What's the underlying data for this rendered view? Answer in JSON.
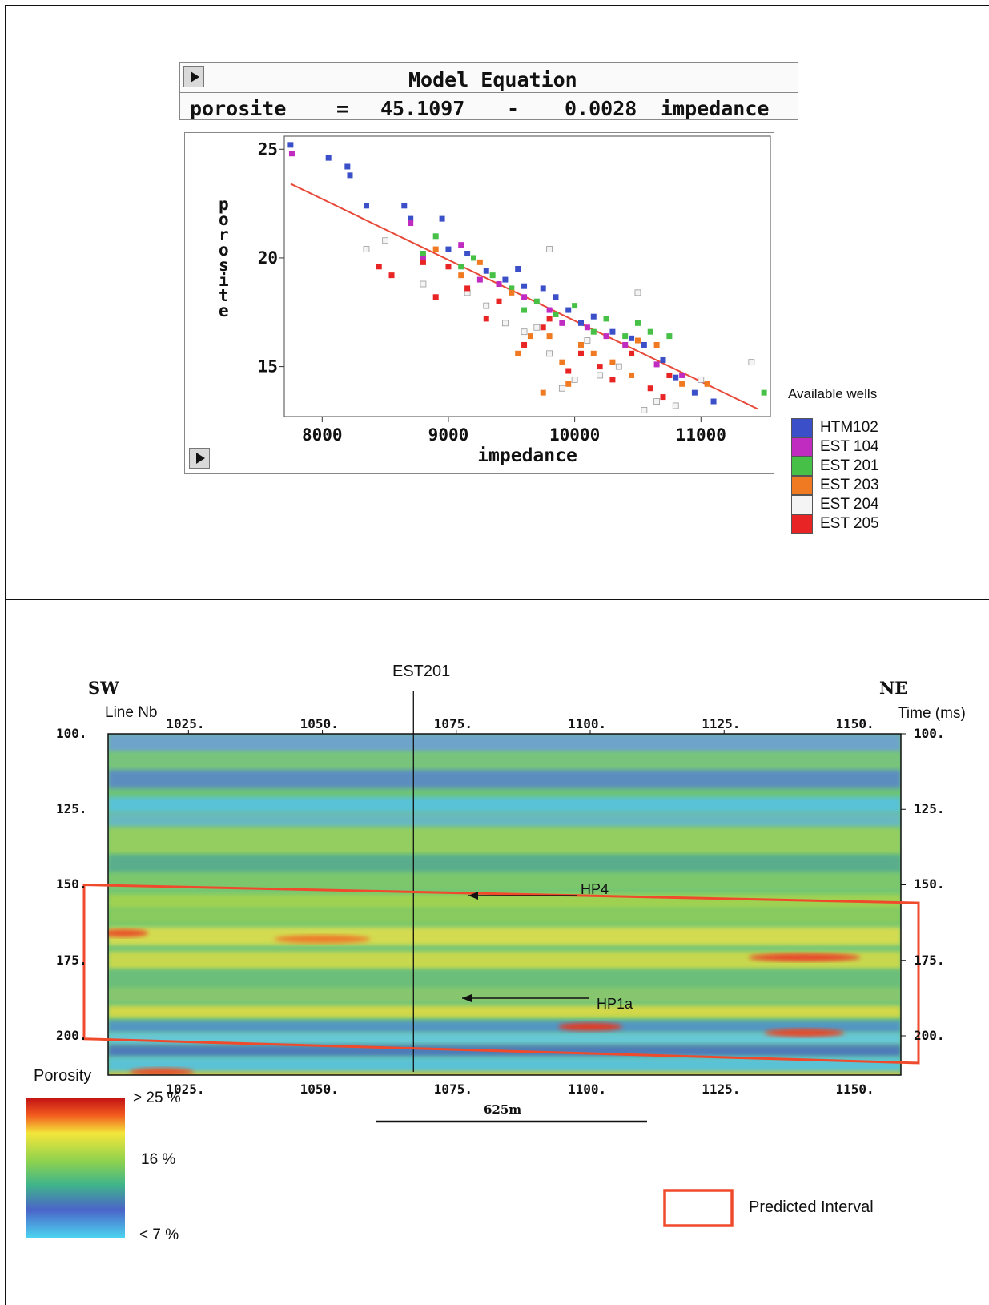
{
  "colors": {
    "HTM102": "#3a4fc8",
    "EST 104": "#c02cc0",
    "EST 201": "#46c046",
    "EST 203": "#f07a22",
    "EST 204": "#f4f4f4",
    "EST 205": "#e82424",
    "fit_line": "#e84a3a",
    "predicted_interval": "#f04a2c"
  },
  "equation": {
    "title": "Model Equation",
    "lhs": "porosite",
    "eq": "=",
    "intercept": "45.1097",
    "op": "-",
    "coef": "0.0028",
    "rhs": "impedance"
  },
  "legend": {
    "title": "Available wells",
    "wells": [
      "HTM102",
      "EST 104",
      "EST 201",
      "EST 203",
      "EST 204",
      "EST 205"
    ]
  },
  "section": {
    "well": "EST201",
    "left_dir": "SW",
    "right_dir": "NE",
    "line_label": "Line Nb",
    "time_label": "Time (ms)",
    "cdp_ticks": [
      "1025.",
      "1050.",
      "1075.",
      "1100.",
      "1125.",
      "1150."
    ],
    "time_ticks": [
      "100.",
      "125.",
      "150.",
      "175.",
      "200."
    ],
    "right_time_ticks": [
      "100.",
      "125.",
      "150.",
      "175.",
      "200."
    ],
    "markers": [
      "HP4",
      "HP1a"
    ],
    "scale_bar": "625m",
    "porosity_title": "Porosity",
    "porosity_labels": [
      "> 25 %",
      "16 %",
      "< 7 %"
    ],
    "predicted_label": "Predicted Interval"
  },
  "chart_data": [
    {
      "type": "scatter",
      "xlabel": "impedance",
      "ylabel": "porosite",
      "xlim": [
        7700,
        11550
      ],
      "ylim": [
        12.7,
        25.6
      ],
      "xticks": [
        8000,
        9000,
        10000,
        11000
      ],
      "yticks": [
        15,
        20,
        25
      ],
      "legend_position": "right",
      "fit_line": {
        "intercept": 45.1097,
        "slope": -0.0028
      },
      "series": [
        {
          "name": "HTM102",
          "points": [
            [
              7750,
              25.2
            ],
            [
              8050,
              24.6
            ],
            [
              8200,
              24.2
            ],
            [
              8220,
              23.8
            ],
            [
              8350,
              22.4
            ],
            [
              8650,
              22.4
            ],
            [
              8700,
              21.8
            ],
            [
              8950,
              21.8
            ],
            [
              9000,
              20.4
            ],
            [
              9150,
              20.2
            ],
            [
              9300,
              19.4
            ],
            [
              9450,
              19.0
            ],
            [
              9550,
              19.5
            ],
            [
              9600,
              18.7
            ],
            [
              9750,
              18.6
            ],
            [
              9850,
              18.2
            ],
            [
              9950,
              17.6
            ],
            [
              10050,
              17.0
            ],
            [
              10150,
              17.3
            ],
            [
              10300,
              16.6
            ],
            [
              10450,
              16.3
            ],
            [
              10550,
              16.0
            ],
            [
              10700,
              15.3
            ],
            [
              10800,
              14.5
            ],
            [
              10950,
              13.8
            ],
            [
              11100,
              13.4
            ]
          ]
        },
        {
          "name": "EST 104",
          "points": [
            [
              7760,
              24.8
            ],
            [
              8700,
              21.6
            ],
            [
              8800,
              20.0
            ],
            [
              9100,
              20.6
            ],
            [
              9250,
              19.0
            ],
            [
              9400,
              18.8
            ],
            [
              9600,
              18.2
            ],
            [
              9800,
              17.6
            ],
            [
              9900,
              17.0
            ],
            [
              10100,
              16.8
            ],
            [
              10250,
              16.4
            ],
            [
              10400,
              16.0
            ],
            [
              10650,
              15.1
            ],
            [
              10850,
              14.6
            ]
          ]
        },
        {
          "name": "EST 201",
          "points": [
            [
              8800,
              20.2
            ],
            [
              8900,
              21.0
            ],
            [
              9100,
              19.6
            ],
            [
              9200,
              20.0
            ],
            [
              9350,
              19.2
            ],
            [
              9500,
              18.6
            ],
            [
              9600,
              17.6
            ],
            [
              9700,
              18.0
            ],
            [
              9850,
              17.4
            ],
            [
              10000,
              17.8
            ],
            [
              10150,
              16.6
            ],
            [
              10250,
              17.2
            ],
            [
              10400,
              16.4
            ],
            [
              10500,
              17.0
            ],
            [
              10600,
              16.6
            ],
            [
              10750,
              16.4
            ],
            [
              11500,
              13.8
            ]
          ]
        },
        {
          "name": "EST 203",
          "points": [
            [
              8900,
              20.4
            ],
            [
              9100,
              19.2
            ],
            [
              9250,
              19.8
            ],
            [
              9500,
              18.4
            ],
            [
              9550,
              15.6
            ],
            [
              9650,
              16.4
            ],
            [
              9750,
              13.8
            ],
            [
              9800,
              16.4
            ],
            [
              9900,
              15.2
            ],
            [
              9950,
              14.2
            ],
            [
              10050,
              16.0
            ],
            [
              10150,
              15.6
            ],
            [
              10300,
              15.2
            ],
            [
              10450,
              14.6
            ],
            [
              10500,
              16.2
            ],
            [
              10650,
              16.0
            ],
            [
              10850,
              14.2
            ],
            [
              11050,
              14.2
            ]
          ]
        },
        {
          "name": "EST 204",
          "points": [
            [
              8350,
              20.4
            ],
            [
              8500,
              20.8
            ],
            [
              8800,
              18.8
            ],
            [
              9150,
              18.4
            ],
            [
              9300,
              17.8
            ],
            [
              9450,
              17.0
            ],
            [
              9600,
              16.6
            ],
            [
              9700,
              16.8
            ],
            [
              9800,
              15.6
            ],
            [
              9900,
              14.0
            ],
            [
              10000,
              14.4
            ],
            [
              10100,
              16.2
            ],
            [
              10200,
              14.6
            ],
            [
              10350,
              15.0
            ],
            [
              10550,
              13.0
            ],
            [
              10650,
              13.4
            ],
            [
              10800,
              13.2
            ],
            [
              11000,
              14.4
            ],
            [
              11400,
              15.2
            ],
            [
              10500,
              18.4
            ],
            [
              9800,
              20.4
            ]
          ]
        },
        {
          "name": "EST 205",
          "points": [
            [
              8450,
              19.6
            ],
            [
              8550,
              19.2
            ],
            [
              8800,
              19.8
            ],
            [
              8900,
              18.2
            ],
            [
              9000,
              19.6
            ],
            [
              9300,
              17.2
            ],
            [
              9400,
              18.0
            ],
            [
              9600,
              16.0
            ],
            [
              9750,
              16.8
            ],
            [
              9800,
              17.2
            ],
            [
              9950,
              14.8
            ],
            [
              10050,
              15.6
            ],
            [
              10200,
              15.0
            ],
            [
              10300,
              14.4
            ],
            [
              10450,
              15.6
            ],
            [
              10600,
              14.0
            ],
            [
              10700,
              13.6
            ],
            [
              10750,
              14.6
            ],
            [
              9150,
              18.6
            ]
          ]
        }
      ]
    },
    {
      "type": "heatmap",
      "title": "",
      "xlabel": "Line Nb",
      "ylabel": "Time (ms)",
      "xlim": [
        1010,
        1158
      ],
      "ylim": [
        100,
        213
      ],
      "colorbar": {
        "label": "Porosity",
        "min": 7,
        "mid": 16,
        "max": 25,
        "unit": "%"
      },
      "well_position_cdp": 1067,
      "predicted_interval": {
        "top_left_time": 150,
        "bottom_left_time": 201,
        "top_right_time": 156,
        "bottom_right_time": 209
      },
      "horizons": [
        {
          "name": "HP4",
          "time": 160
        },
        {
          "name": "HP1a",
          "time": 198
        }
      ]
    }
  ]
}
